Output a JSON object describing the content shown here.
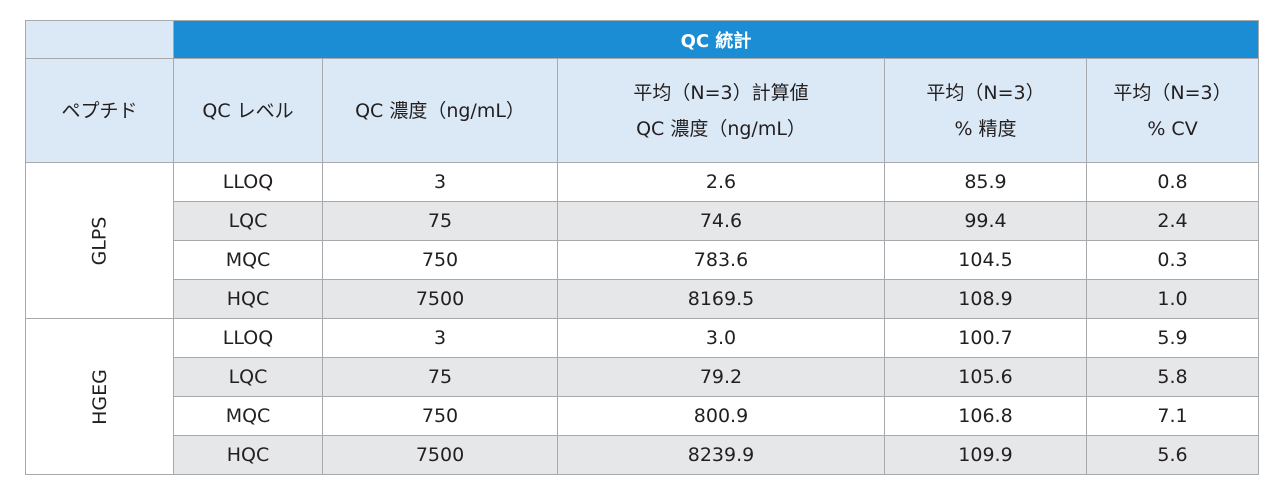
{
  "header": {
    "group_title": "QC 統計",
    "columns": [
      [
        "ペプチド"
      ],
      [
        "QC レベル"
      ],
      [
        "QC 濃度（ng/mL）"
      ],
      [
        "平均（N=3）計算値",
        "QC 濃度（ng/mL）"
      ],
      [
        "平均（N=3）",
        "% 精度"
      ],
      [
        "平均（N=3）",
        "% CV"
      ]
    ]
  },
  "groups": [
    {
      "peptide": "GLPS",
      "rows": [
        [
          "LLOQ",
          "3",
          "2.6",
          "85.9",
          "0.8"
        ],
        [
          "LQC",
          "75",
          "74.6",
          "99.4",
          "2.4"
        ],
        [
          "MQC",
          "750",
          "783.6",
          "104.5",
          "0.3"
        ],
        [
          "HQC",
          "7500",
          "8169.5",
          "108.9",
          "1.0"
        ]
      ]
    },
    {
      "peptide": "HGEG",
      "rows": [
        [
          "LLOQ",
          "3",
          "3.0",
          "100.7",
          "5.9"
        ],
        [
          "LQC",
          "75",
          "79.2",
          "105.6",
          "5.8"
        ],
        [
          "MQC",
          "750",
          "800.9",
          "106.8",
          "7.1"
        ],
        [
          "HQC",
          "7500",
          "8239.9",
          "109.9",
          "5.6"
        ]
      ]
    }
  ]
}
